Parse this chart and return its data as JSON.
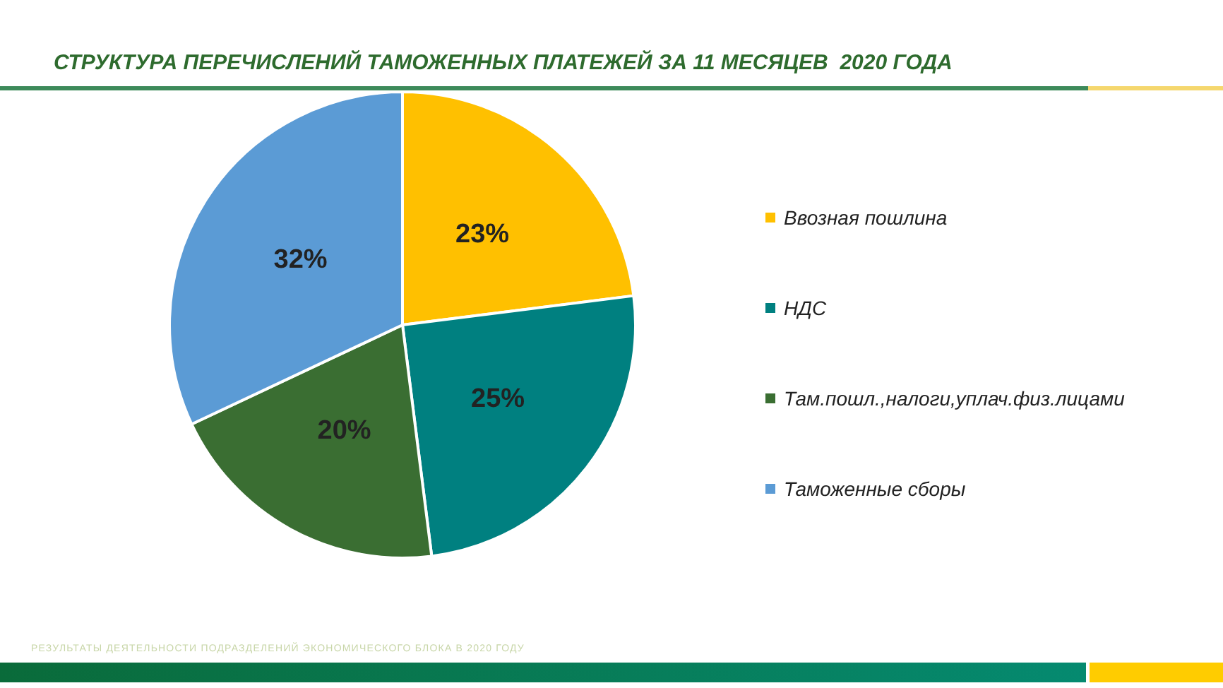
{
  "chart_data": {
    "type": "pie",
    "title": "СТРУКТУРА ПЕРЕЧИСЛЕНИЙ ТАМОЖЕННЫХ ПЛАТЕЖЕЙ ЗА 11 МЕСЯЦЕВ  2020 ГОДА",
    "categories": [
      "Ввозная пошлина",
      "НДС",
      "Там.пошл.,налоги,уплач.физ.лицами",
      "Таможенные сборы"
    ],
    "values": [
      23,
      25,
      20,
      32
    ],
    "colors": [
      "#ffc000",
      "#008080",
      "#3a6e32",
      "#5b9bd5"
    ],
    "value_labels": [
      "23%",
      "25%",
      "20%",
      "32%"
    ],
    "legend": "right",
    "annotations": [
      "РЕЗУЛЬТАТЫ ДЕЯТЕЛЬНОСТИ ПОДРАЗДЕЛЕНИЙ ЭКОНОМИЧЕСКОГО БЛОКА В 2020 ГОДУ"
    ]
  }
}
